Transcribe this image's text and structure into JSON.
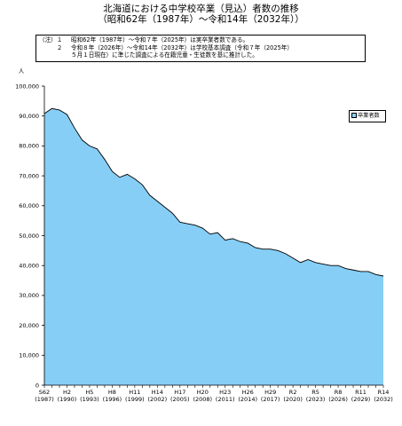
{
  "header": {
    "title_line1": "北海道における中学校卒業（見込）者数の推移",
    "title_line2": "（昭和62年（1987年）～令和14年（2032年））"
  },
  "notes": [
    {
      "lead": "（注）１",
      "text": "昭和62年（1987年）～令和７年（2025年）は実卒業者数である。"
    },
    {
      "lead": "　　　２",
      "text": "令和８年（2026年）～令和14年（2032年）は学校基本調査（令和７年（2025年）"
    },
    {
      "lead": "",
      "text": "５月１日現在）に準じた調査による在籍児童・生徒数を基に推計した。"
    }
  ],
  "chart_data": {
    "type": "area",
    "ylabel": "人",
    "ylim": [
      0,
      100000
    ],
    "grid": false,
    "legend_position": "right",
    "y_ticks": [
      "0",
      "10,000",
      "20,000",
      "30,000",
      "40,000",
      "50,000",
      "60,000",
      "70,000",
      "80,000",
      "90,000",
      "100,000"
    ],
    "x": [
      1987,
      1988,
      1989,
      1990,
      1991,
      1992,
      1993,
      1994,
      1995,
      1996,
      1997,
      1998,
      1999,
      2000,
      2001,
      2002,
      2003,
      2004,
      2005,
      2006,
      2007,
      2008,
      2009,
      2010,
      2011,
      2012,
      2013,
      2014,
      2015,
      2016,
      2017,
      2018,
      2019,
      2020,
      2021,
      2022,
      2023,
      2024,
      2025,
      2026,
      2027,
      2028,
      2029,
      2030,
      2031,
      2032
    ],
    "x_tick_labels": [
      {
        "era": "S62",
        "year": "(1987)"
      },
      {
        "era": "H2",
        "year": "(1990)"
      },
      {
        "era": "H5",
        "year": "(1993)"
      },
      {
        "era": "H8",
        "year": "(1996)"
      },
      {
        "era": "H11",
        "year": "(1999)"
      },
      {
        "era": "H14",
        "year": "(2002)"
      },
      {
        "era": "H17",
        "year": "(2005)"
      },
      {
        "era": "H20",
        "year": "(2008)"
      },
      {
        "era": "H23",
        "year": "(2011)"
      },
      {
        "era": "H26",
        "year": "(2014)"
      },
      {
        "era": "H29",
        "year": "(2017)"
      },
      {
        "era": "R2",
        "year": "(2020)"
      },
      {
        "era": "R5",
        "year": "(2023)"
      },
      {
        "era": "R8",
        "year": "(2026)"
      },
      {
        "era": "R11",
        "year": "(2029)"
      },
      {
        "era": "R14",
        "year": "(2032)"
      }
    ],
    "series": [
      {
        "name": "卒業者数",
        "color": "#86cef5",
        "values": [
          90800,
          92500,
          92000,
          90500,
          86000,
          82000,
          80000,
          79000,
          75500,
          71500,
          69500,
          70500,
          69000,
          67000,
          63500,
          61500,
          59500,
          57500,
          54500,
          54000,
          53500,
          52500,
          50500,
          51000,
          48500,
          49000,
          48000,
          47500,
          46000,
          45500,
          45500,
          45000,
          44000,
          42500,
          41000,
          42000,
          41000,
          40500,
          40000,
          40000,
          39000,
          38500,
          38000,
          38000,
          37000,
          36500
        ]
      }
    ]
  }
}
